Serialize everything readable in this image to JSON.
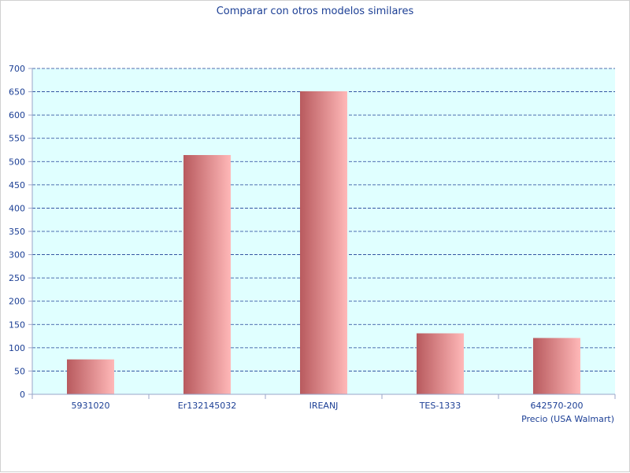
{
  "chart_data": {
    "type": "bar",
    "title": "Comparar con otros modelos similares",
    "xlabel": "Precio (USA Walmart)",
    "ylabel": "",
    "categories": [
      "5931020",
      "Er132145032",
      "IREANJ",
      "TES-1333",
      "642570-200"
    ],
    "values": [
      75,
      514,
      651,
      131,
      121
    ],
    "ylim": [
      0,
      700
    ],
    "yticks": [
      0,
      50,
      100,
      150,
      200,
      250,
      300,
      350,
      400,
      450,
      500,
      550,
      600,
      650,
      700
    ],
    "grid": true,
    "legend": "none",
    "colors": {
      "plot_bg": "#e0ffff",
      "grid": "#1c3f95",
      "bar_dark": "#b85a5e",
      "bar_light": "#ffb8b8",
      "text": "#1c3f95"
    }
  }
}
